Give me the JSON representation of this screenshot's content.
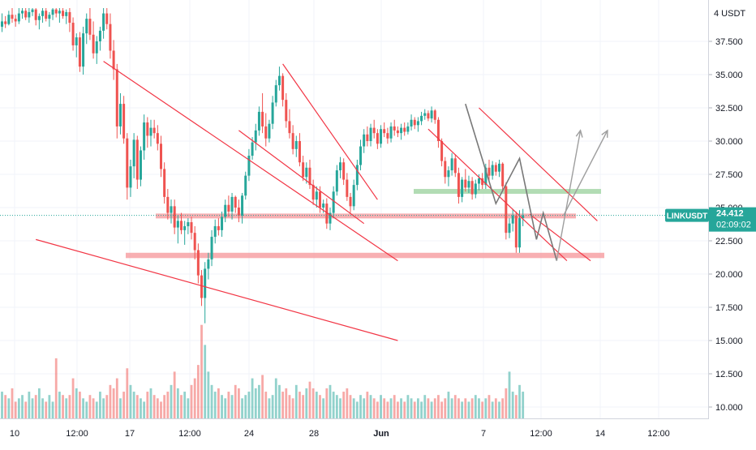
{
  "chart_data": {
    "type": "candlestick",
    "symbol": "LINKUSDT",
    "quote_currency_label": "4 USDT",
    "last_price": "24.412",
    "countdown": "02:09:02",
    "colors": {
      "up": "#26a69a",
      "down": "#ef5350",
      "channel": "#f23645",
      "resistance_zone": "#f7a1a5",
      "support_zone": "#a5d6a7",
      "projection": "#9e9e9e",
      "pattern": "#787878",
      "price_label_bg": "#26a69a"
    },
    "y_axis": {
      "range": [
        10.0,
        40.0
      ],
      "ticks": [
        "37.500",
        "35.000",
        "32.500",
        "30.000",
        "27.500",
        "25.000",
        "22.500",
        "20.000",
        "17.500",
        "15.000",
        "12.500",
        "10.000"
      ]
    },
    "x_axis": {
      "ticks": [
        "10",
        "12:00",
        "17",
        "12:00",
        "24",
        "28",
        "Jun",
        "7",
        "12:00",
        "14",
        "12:00"
      ],
      "bold_ticks": [
        "Jun"
      ]
    },
    "candles": [
      [
        38.6,
        39.6,
        38.2,
        39.0
      ],
      [
        39.0,
        39.4,
        38.5,
        38.8
      ],
      [
        38.8,
        39.8,
        38.7,
        39.5
      ],
      [
        39.5,
        40.0,
        38.9,
        39.2
      ],
      [
        39.2,
        39.5,
        38.6,
        39.0
      ],
      [
        39.0,
        40.0,
        38.8,
        39.6
      ],
      [
        39.6,
        40.0,
        39.2,
        39.8
      ],
      [
        39.8,
        40.0,
        39.1,
        39.3
      ],
      [
        39.3,
        40.0,
        38.9,
        39.7
      ],
      [
        39.7,
        40.0,
        39.4,
        39.9
      ],
      [
        39.9,
        40.0,
        38.7,
        39.1
      ],
      [
        39.1,
        39.6,
        38.4,
        39.4
      ],
      [
        39.4,
        40.0,
        38.9,
        39.8
      ],
      [
        39.8,
        40.0,
        39.0,
        39.2
      ],
      [
        39.2,
        39.7,
        38.6,
        39.5
      ],
      [
        39.5,
        40.0,
        39.1,
        39.9
      ],
      [
        39.9,
        40.0,
        39.3,
        39.6
      ],
      [
        39.6,
        40.0,
        38.9,
        39.8
      ],
      [
        39.8,
        40.0,
        39.2,
        39.4
      ],
      [
        39.4,
        39.9,
        38.8,
        39.7
      ],
      [
        39.7,
        40.0,
        38.2,
        38.9
      ],
      [
        38.9,
        39.3,
        36.8,
        37.2
      ],
      [
        37.2,
        38.1,
        36.3,
        37.8
      ],
      [
        37.8,
        38.2,
        35.2,
        35.6
      ],
      [
        35.6,
        38.6,
        35.0,
        38.1
      ],
      [
        38.1,
        39.6,
        37.3,
        39.2
      ],
      [
        39.2,
        40.0,
        37.6,
        38.0
      ],
      [
        38.0,
        39.0,
        36.2,
        36.6
      ],
      [
        36.6,
        37.9,
        35.8,
        37.5
      ],
      [
        37.5,
        38.6,
        36.8,
        38.3
      ],
      [
        38.3,
        40.0,
        37.7,
        39.6
      ],
      [
        39.6,
        40.0,
        38.4,
        38.8
      ],
      [
        38.8,
        39.6,
        36.2,
        36.8
      ],
      [
        36.8,
        37.6,
        34.6,
        35.4
      ],
      [
        35.4,
        35.8,
        30.2,
        31.1
      ],
      [
        31.1,
        33.6,
        30.5,
        32.8
      ],
      [
        32.8,
        33.4,
        29.8,
        30.2
      ],
      [
        30.2,
        30.6,
        25.6,
        26.5
      ],
      [
        26.5,
        28.6,
        25.8,
        28.1
      ],
      [
        28.1,
        30.6,
        27.2,
        30.1
      ],
      [
        30.1,
        30.4,
        26.4,
        27.1
      ],
      [
        27.1,
        29.6,
        26.6,
        29.3
      ],
      [
        29.3,
        32.0,
        28.6,
        31.4
      ],
      [
        31.4,
        31.8,
        29.5,
        30.4
      ],
      [
        30.4,
        31.6,
        29.6,
        31.0
      ],
      [
        31.0,
        31.6,
        30.2,
        30.6
      ],
      [
        30.6,
        31.2,
        29.3,
        29.8
      ],
      [
        29.8,
        30.4,
        27.3,
        27.9
      ],
      [
        27.9,
        28.4,
        25.3,
        25.8
      ],
      [
        25.8,
        26.4,
        24.1,
        24.6
      ],
      [
        24.6,
        25.6,
        23.8,
        25.1
      ],
      [
        25.1,
        25.6,
        23.0,
        23.5
      ],
      [
        23.5,
        24.4,
        22.3,
        24.0
      ],
      [
        24.0,
        24.6,
        23.0,
        23.3
      ],
      [
        23.3,
        24.0,
        22.2,
        23.6
      ],
      [
        23.6,
        24.2,
        23.0,
        23.9
      ],
      [
        23.9,
        24.3,
        22.6,
        23.1
      ],
      [
        23.1,
        23.6,
        21.1,
        21.8
      ],
      [
        21.8,
        22.3,
        19.3,
        19.9
      ],
      [
        19.9,
        20.3,
        17.6,
        18.2
      ],
      [
        18.2,
        20.9,
        16.3,
        20.4
      ],
      [
        20.4,
        21.6,
        19.6,
        21.1
      ],
      [
        21.1,
        23.3,
        20.6,
        22.8
      ],
      [
        22.8,
        24.1,
        22.3,
        23.6
      ],
      [
        23.6,
        24.2,
        22.9,
        23.3
      ],
      [
        23.3,
        24.7,
        22.8,
        24.3
      ],
      [
        24.3,
        25.6,
        23.9,
        25.2
      ],
      [
        25.2,
        25.9,
        24.3,
        24.7
      ],
      [
        24.7,
        26.1,
        24.1,
        25.8
      ],
      [
        25.8,
        25.9,
        24.6,
        25.0
      ],
      [
        25.0,
        25.6,
        23.9,
        24.4
      ],
      [
        24.4,
        26.1,
        23.8,
        25.9
      ],
      [
        25.9,
        27.7,
        25.6,
        27.4
      ],
      [
        27.4,
        29.4,
        27.0,
        28.9
      ],
      [
        28.9,
        30.3,
        28.6,
        29.9
      ],
      [
        29.9,
        31.3,
        29.3,
        30.8
      ],
      [
        30.8,
        32.6,
        30.4,
        32.2
      ],
      [
        32.2,
        33.6,
        30.6,
        31.1
      ],
      [
        31.1,
        32.1,
        29.6,
        30.2
      ],
      [
        30.2,
        31.6,
        29.9,
        31.3
      ],
      [
        31.3,
        33.4,
        30.9,
        32.9
      ],
      [
        32.9,
        34.6,
        32.6,
        34.2
      ],
      [
        34.2,
        35.6,
        33.8,
        34.9
      ],
      [
        34.9,
        35.1,
        32.6,
        33.1
      ],
      [
        33.1,
        33.6,
        31.0,
        31.5
      ],
      [
        31.5,
        32.4,
        30.2,
        30.6
      ],
      [
        30.6,
        31.2,
        29.0,
        29.4
      ],
      [
        29.4,
        30.4,
        28.8,
        30.0
      ],
      [
        30.0,
        30.6,
        28.1,
        28.4
      ],
      [
        28.4,
        28.9,
        27.0,
        27.3
      ],
      [
        27.3,
        28.4,
        26.8,
        28.0
      ],
      [
        28.0,
        28.6,
        26.4,
        26.7
      ],
      [
        26.7,
        27.1,
        25.2,
        25.6
      ],
      [
        25.6,
        26.6,
        25.0,
        26.2
      ],
      [
        26.2,
        26.6,
        24.6,
        25.0
      ],
      [
        25.0,
        25.6,
        24.6,
        25.3
      ],
      [
        25.3,
        25.7,
        23.4,
        23.8
      ],
      [
        23.8,
        25.0,
        23.3,
        24.6
      ],
      [
        24.6,
        26.6,
        24.2,
        26.2
      ],
      [
        26.2,
        28.2,
        25.9,
        27.8
      ],
      [
        27.8,
        28.8,
        27.2,
        28.4
      ],
      [
        28.4,
        28.7,
        26.7,
        27.1
      ],
      [
        27.1,
        27.6,
        25.5,
        25.8
      ],
      [
        25.8,
        26.1,
        24.6,
        25.1
      ],
      [
        25.1,
        27.1,
        24.8,
        26.7
      ],
      [
        26.7,
        28.6,
        26.3,
        28.2
      ],
      [
        28.2,
        30.1,
        27.8,
        29.6
      ],
      [
        29.6,
        30.9,
        29.1,
        30.5
      ],
      [
        30.5,
        31.1,
        29.6,
        30.0
      ],
      [
        30.0,
        31.3,
        29.6,
        31.0
      ],
      [
        31.0,
        31.6,
        30.2,
        30.6
      ],
      [
        30.6,
        30.9,
        29.4,
        29.8
      ],
      [
        29.8,
        31.2,
        29.5,
        30.9
      ],
      [
        30.9,
        31.4,
        30.3,
        30.6
      ],
      [
        30.6,
        31.0,
        29.8,
        30.2
      ],
      [
        30.2,
        31.4,
        29.9,
        31.1
      ],
      [
        31.1,
        31.6,
        30.4,
        30.8
      ],
      [
        30.8,
        31.1,
        30.3,
        30.6
      ],
      [
        30.6,
        31.3,
        30.1,
        31.0
      ],
      [
        31.0,
        31.4,
        30.4,
        30.7
      ],
      [
        30.7,
        31.4,
        30.5,
        31.1
      ],
      [
        31.1,
        32.0,
        30.8,
        31.6
      ],
      [
        31.6,
        31.8,
        30.9,
        31.2
      ],
      [
        31.2,
        31.8,
        30.7,
        31.5
      ],
      [
        31.5,
        32.2,
        31.2,
        31.9
      ],
      [
        31.9,
        32.4,
        31.6,
        32.1
      ],
      [
        32.1,
        32.3,
        31.5,
        31.7
      ],
      [
        31.7,
        32.6,
        31.4,
        32.3
      ],
      [
        32.3,
        32.4,
        31.3,
        31.6
      ],
      [
        31.6,
        31.8,
        29.5,
        30.0
      ],
      [
        30.0,
        30.2,
        28.1,
        28.5
      ],
      [
        28.5,
        28.8,
        26.8,
        27.3
      ],
      [
        27.3,
        28.1,
        26.6,
        27.8
      ],
      [
        27.8,
        29.1,
        27.4,
        28.7
      ],
      [
        28.7,
        29.0,
        27.3,
        27.6
      ],
      [
        27.6,
        28.0,
        25.3,
        25.8
      ],
      [
        25.8,
        27.3,
        25.4,
        27.1
      ],
      [
        27.1,
        27.9,
        26.2,
        26.5
      ],
      [
        26.5,
        27.4,
        26.1,
        27.0
      ],
      [
        27.0,
        27.3,
        25.6,
        26.0
      ],
      [
        26.0,
        27.1,
        25.7,
        26.8
      ],
      [
        26.8,
        27.5,
        26.3,
        27.2
      ],
      [
        27.2,
        27.6,
        26.4,
        26.7
      ],
      [
        26.7,
        28.3,
        26.4,
        28.0
      ],
      [
        28.0,
        28.6,
        27.0,
        27.4
      ],
      [
        27.4,
        28.5,
        27.1,
        28.2
      ],
      [
        28.2,
        28.4,
        27.4,
        27.7
      ],
      [
        27.7,
        28.6,
        27.3,
        28.3
      ],
      [
        28.3,
        28.4,
        26.2,
        26.6
      ],
      [
        26.6,
        26.9,
        22.6,
        23.1
      ],
      [
        23.1,
        24.2,
        22.7,
        23.8
      ],
      [
        23.8,
        24.9,
        23.2,
        24.4
      ],
      [
        24.4,
        24.7,
        21.6,
        22.0
      ],
      [
        22.0,
        24.8,
        21.6,
        24.2
      ],
      [
        24.2,
        24.9,
        23.6,
        24.412
      ]
    ],
    "volumes": [
      0.08,
      0.07,
      0.06,
      0.09,
      0.05,
      0.06,
      0.07,
      0.05,
      0.08,
      0.06,
      0.07,
      0.09,
      0.06,
      0.05,
      0.07,
      0.05,
      0.18,
      0.08,
      0.07,
      0.06,
      0.07,
      0.12,
      0.09,
      0.08,
      0.06,
      0.05,
      0.07,
      0.06,
      0.05,
      0.08,
      0.06,
      0.07,
      0.1,
      0.09,
      0.12,
      0.06,
      0.08,
      0.15,
      0.1,
      0.08,
      0.07,
      0.06,
      0.05,
      0.08,
      0.09,
      0.07,
      0.06,
      0.05,
      0.07,
      0.08,
      0.1,
      0.14,
      0.09,
      0.07,
      0.08,
      0.06,
      0.1,
      0.12,
      0.16,
      0.28,
      0.22,
      0.14,
      0.1,
      0.08,
      0.09,
      0.07,
      0.06,
      0.08,
      0.07,
      0.1,
      0.09,
      0.06,
      0.07,
      0.08,
      0.12,
      0.09,
      0.1,
      0.13,
      0.08,
      0.06,
      0.07,
      0.12,
      0.1,
      0.08,
      0.09,
      0.07,
      0.06,
      0.1,
      0.08,
      0.07,
      0.09,
      0.11,
      0.09,
      0.08,
      0.07,
      0.06,
      0.09,
      0.1,
      0.08,
      0.07,
      0.06,
      0.08,
      0.09,
      0.07,
      0.06,
      0.05,
      0.07,
      0.06,
      0.08,
      0.07,
      0.06,
      0.05,
      0.07,
      0.06,
      0.05,
      0.06,
      0.07,
      0.05,
      0.06,
      0.05,
      0.07,
      0.06,
      0.05,
      0.06,
      0.05,
      0.07,
      0.06,
      0.05,
      0.06,
      0.07,
      0.05,
      0.06,
      0.08,
      0.06,
      0.07,
      0.06,
      0.05,
      0.06,
      0.05,
      0.06,
      0.07,
      0.06,
      0.05,
      0.06,
      0.07,
      0.05,
      0.06,
      0.05,
      0.06,
      0.09,
      0.14,
      0.08,
      0.07,
      0.1,
      0.08,
      0.06
    ],
    "volume_max": 0.34,
    "annotations": {
      "zones": [
        {
          "from": 24.25,
          "to": 24.55,
          "kind": "resistance"
        },
        {
          "from": 21.2,
          "to": 21.6,
          "kind": "resistance"
        },
        {
          "from": 26.1,
          "to": 26.4,
          "kind": "support"
        }
      ],
      "channels": [
        {
          "points": [
            [
              30,
              36.0
            ],
            [
              117,
              21.0
            ]
          ],
          "note": "upper"
        },
        {
          "points": [
            [
              10,
              22.6
            ],
            [
              117,
              15.0
            ]
          ],
          "note": "lower"
        },
        {
          "points": [
            [
              70,
              30.8
            ],
            [
              107,
              23.8
            ]
          ]
        },
        {
          "points": [
            [
              83,
              35.8
            ],
            [
              111,
              25.6
            ]
          ]
        },
        {
          "points": [
            [
              126,
              30.9
            ],
            [
              167,
              21.0
            ]
          ]
        },
        {
          "points": [
            [
              141,
              32.5
            ],
            [
              176,
              24.0
            ]
          ]
        },
        {
          "points": [
            [
              156,
              24.5
            ],
            [
              174,
              21.0
            ]
          ]
        }
      ],
      "pattern": [
        [
          137,
          32.8
        ],
        [
          146,
          25.3
        ],
        [
          153,
          28.7
        ],
        [
          158,
          22.6
        ],
        [
          160,
          24.6
        ],
        [
          164,
          21.0
        ]
      ],
      "projections": [
        [
          [
            164,
            21.0
          ],
          [
            171,
            30.8
          ]
        ],
        [
          [
            166,
            24.4
          ],
          [
            179,
            30.8
          ]
        ]
      ]
    }
  }
}
